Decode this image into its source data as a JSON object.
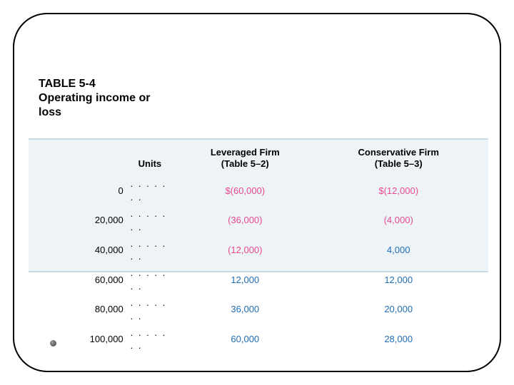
{
  "title": {
    "line1": "TABLE 5-4",
    "line2": "Operating income or",
    "line3": "loss"
  },
  "table": {
    "background_color": "#edf3f7",
    "border_color": "#cddbe4",
    "neg_color": "#e94b8a",
    "pos_color": "#1f6db5",
    "header_color": "#000000",
    "font_size_header": 13,
    "font_size_body": 13,
    "columns": {
      "units": "Units",
      "leveraged_line1": "Leveraged Firm",
      "leveraged_line2": "(Table 5–2)",
      "conservative_line1": "Conservative Firm",
      "conservative_line2": "(Table 5–3)"
    },
    "rows": [
      {
        "units": "0",
        "dots": ". . . . . . .",
        "lev": "$(60,000)",
        "lev_neg": true,
        "con": "$(12,000)",
        "con_neg": true
      },
      {
        "units": "20,000",
        "dots": ". . . . . . .",
        "lev": "(36,000)",
        "lev_neg": true,
        "con": "(4,000)",
        "con_neg": true
      },
      {
        "units": "40,000",
        "dots": ". . . . . . .",
        "lev": "(12,000)",
        "lev_neg": true,
        "con": "4,000",
        "con_neg": false
      },
      {
        "units": "60,000",
        "dots": ". . . . . . .",
        "lev": "12,000",
        "lev_neg": false,
        "con": "12,000",
        "con_neg": false
      },
      {
        "units": "80,000",
        "dots": ". . . . . . .",
        "lev": "36,000",
        "lev_neg": false,
        "con": "20,000",
        "con_neg": false
      },
      {
        "units": "100,000",
        "dots": ". . . . . . .",
        "lev": "60,000",
        "lev_neg": false,
        "con": "28,000",
        "con_neg": false
      }
    ]
  }
}
